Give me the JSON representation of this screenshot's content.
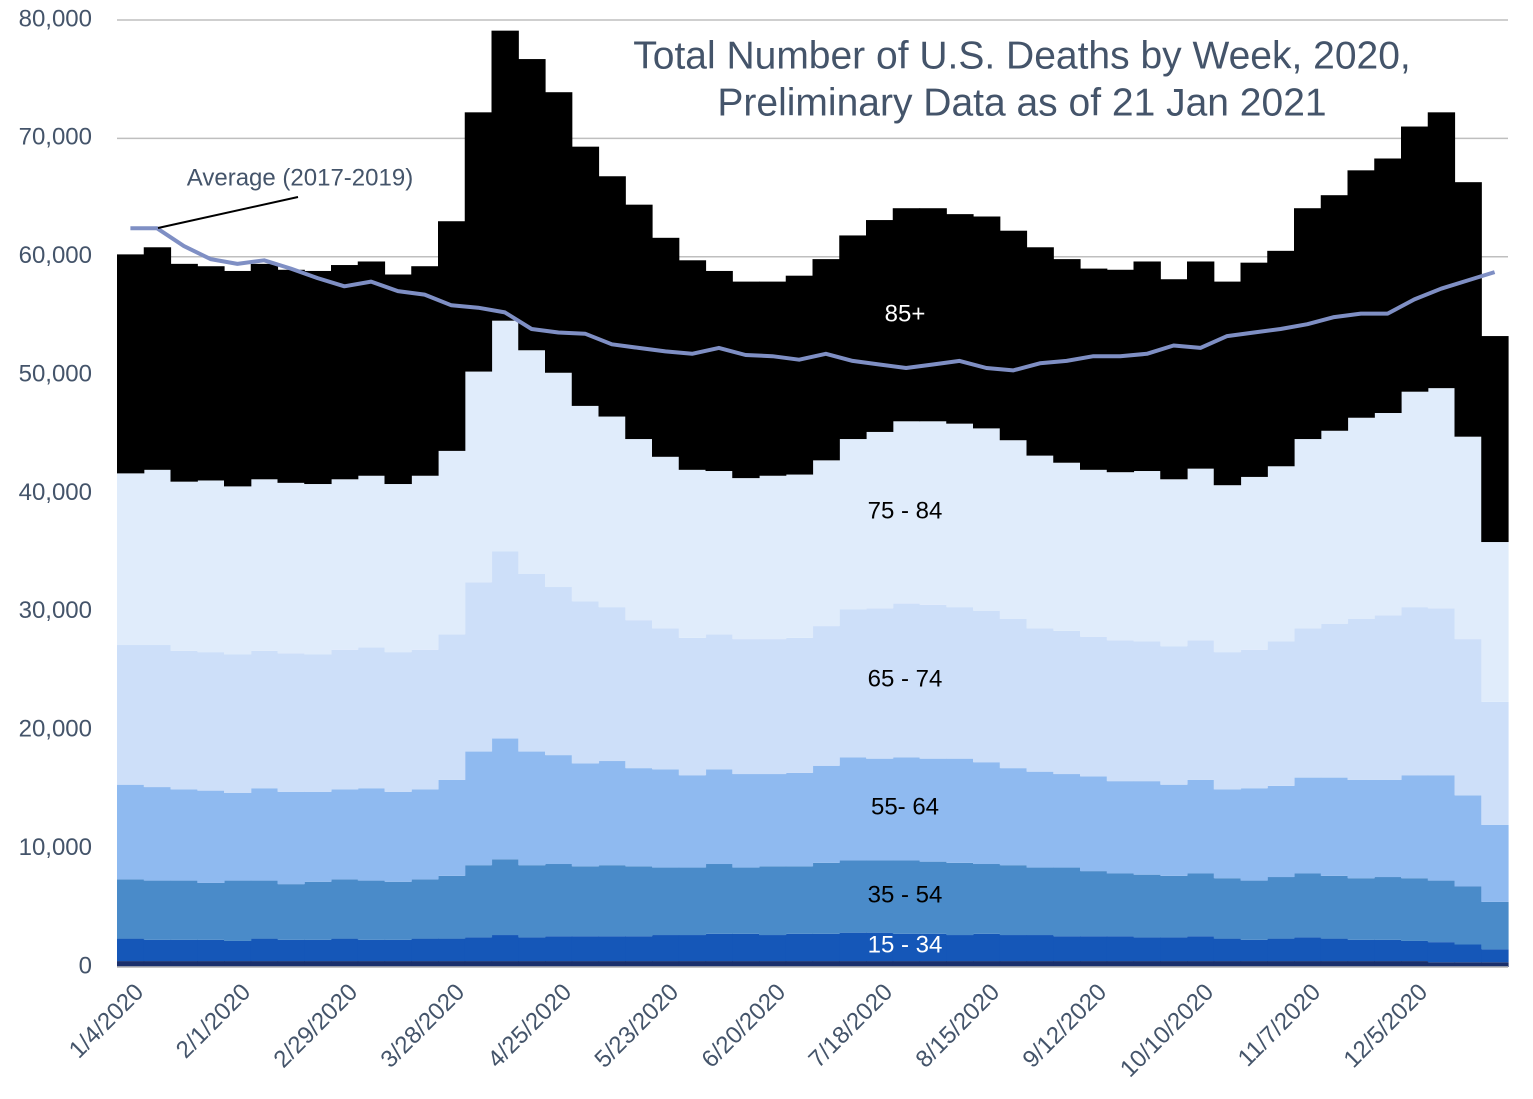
{
  "chart_data": {
    "type": "stacked-step-area",
    "title": [
      "Total Number of U.S. Deaths by Week, 2020,",
      "Preliminary Data as of 21 Jan 2021"
    ],
    "categories": [
      "1/4/2020",
      null,
      null,
      null,
      "2/1/2020",
      null,
      null,
      null,
      "2/29/2020",
      null,
      null,
      null,
      "3/28/2020",
      null,
      null,
      null,
      "4/25/2020",
      null,
      null,
      null,
      "5/23/2020",
      null,
      null,
      null,
      "6/20/2020",
      null,
      null,
      null,
      "7/18/2020",
      null,
      null,
      null,
      "8/15/2020",
      null,
      null,
      null,
      "9/12/2020",
      null,
      null,
      null,
      "10/10/2020",
      null,
      null,
      null,
      "11/7/2020",
      null,
      null,
      null,
      "12/5/2020",
      null,
      null,
      null
    ],
    "ylim": [
      0,
      80000
    ],
    "yticks": [
      0,
      {
        "value": 10000,
        "label": "10,000"
      },
      {
        "value": 20000,
        "label": "20,000"
      },
      {
        "value": 30000,
        "label": "30,000"
      },
      {
        "value": 40000,
        "label": "40,000"
      },
      {
        "value": 50000,
        "label": "50,000"
      },
      {
        "value": 60000,
        "label": "60,000"
      },
      {
        "value": 70000,
        "label": "70,000"
      },
      {
        "value": 80000,
        "label": "80,000"
      }
    ],
    "grid": true,
    "series": [
      {
        "color": "#1a2f6b",
        "values": [
          500,
          500,
          500,
          500,
          500,
          500,
          500,
          500,
          500,
          500,
          500,
          500,
          500,
          500,
          500,
          500,
          500,
          500,
          500,
          500,
          500,
          500,
          500,
          500,
          500,
          500,
          500,
          500,
          500,
          500,
          500,
          500,
          500,
          500,
          500,
          500,
          500,
          500,
          500,
          500,
          500,
          500,
          500,
          500,
          500,
          500,
          500,
          500,
          500,
          400,
          400,
          400
        ]
      },
      {
        "name": "15 - 34",
        "color": "#1557b8",
        "values": [
          1900,
          1800,
          1800,
          1800,
          1700,
          1900,
          1800,
          1800,
          1900,
          1800,
          1800,
          1900,
          1900,
          2000,
          2200,
          2000,
          2100,
          2100,
          2100,
          2100,
          2200,
          2200,
          2300,
          2300,
          2200,
          2300,
          2300,
          2400,
          2400,
          2300,
          2300,
          2200,
          2300,
          2200,
          2200,
          2100,
          2100,
          2100,
          2000,
          2000,
          2100,
          1900,
          1800,
          1900,
          2000,
          1900,
          1800,
          1800,
          1700,
          1700,
          1500,
          1100
        ]
      },
      {
        "name": "35 - 54",
        "color": "#4a8bc9",
        "values": [
          5000,
          5000,
          5000,
          4800,
          5100,
          4900,
          4700,
          4900,
          5000,
          5000,
          4900,
          5000,
          5300,
          6100,
          6400,
          6100,
          6100,
          5900,
          6000,
          5900,
          5700,
          5700,
          5900,
          5600,
          5800,
          5700,
          6000,
          6100,
          6100,
          6200,
          6100,
          6100,
          5900,
          5900,
          5700,
          5800,
          5500,
          5300,
          5300,
          5200,
          5300,
          5100,
          5000,
          5200,
          5400,
          5300,
          5200,
          5300,
          5300,
          5200,
          4900,
          4000
        ]
      },
      {
        "name": "55- 64",
        "color": "#8fbaf0",
        "values": [
          8000,
          7900,
          7700,
          7800,
          7400,
          7800,
          7800,
          7600,
          7600,
          7800,
          7600,
          7600,
          8100,
          9600,
          10200,
          9600,
          9200,
          8700,
          8800,
          8300,
          8300,
          7800,
          8000,
          7900,
          7800,
          7900,
          8200,
          8700,
          8600,
          8700,
          8700,
          8800,
          8600,
          8200,
          8100,
          7900,
          8000,
          7800,
          7900,
          7700,
          7900,
          7500,
          7800,
          7700,
          8100,
          8300,
          8300,
          8200,
          8700,
          8900,
          7700,
          6500
        ]
      },
      {
        "name": "65 - 74",
        "color": "#cddff9",
        "values": [
          11800,
          12000,
          11700,
          11700,
          11700,
          11600,
          11700,
          11600,
          11800,
          11900,
          11800,
          11800,
          12300,
          14300,
          15800,
          15000,
          14200,
          13700,
          13000,
          12500,
          11900,
          11600,
          11400,
          11400,
          11400,
          11400,
          11800,
          12500,
          12700,
          13000,
          13000,
          12800,
          12800,
          12600,
          12100,
          12100,
          11800,
          11900,
          11800,
          11700,
          11800,
          11600,
          11700,
          12200,
          12600,
          13000,
          13600,
          13900,
          14200,
          14100,
          13200,
          10400
        ]
      },
      {
        "name": "75 - 84",
        "color": "#e0ecfb",
        "values": [
          14500,
          14800,
          14300,
          14500,
          14200,
          14500,
          14400,
          14400,
          14400,
          14500,
          14200,
          14700,
          15500,
          17800,
          19500,
          18900,
          18100,
          16500,
          16100,
          15300,
          14500,
          14200,
          13800,
          13600,
          13800,
          13800,
          14000,
          14400,
          14900,
          15400,
          15500,
          15500,
          15400,
          15100,
          14600,
          14200,
          14100,
          14200,
          14400,
          14100,
          14500,
          14100,
          14600,
          14800,
          16000,
          16300,
          17000,
          17100,
          18200,
          18600,
          17100,
          13500
        ]
      },
      {
        "name": "85+",
        "color": "#000000",
        "values": [
          18500,
          18800,
          18400,
          18100,
          18200,
          18200,
          18000,
          18000,
          18100,
          18100,
          17700,
          17700,
          19400,
          21900,
          24500,
          24600,
          23700,
          21900,
          20300,
          19800,
          18500,
          17700,
          16900,
          16600,
          16400,
          16800,
          17000,
          17200,
          17900,
          18000,
          18000,
          17700,
          17900,
          17700,
          17600,
          17200,
          17000,
          17100,
          17700,
          16900,
          17500,
          17200,
          18100,
          18200,
          19500,
          19900,
          20900,
          21500,
          22400,
          23300,
          21500,
          17400
        ]
      }
    ],
    "line": {
      "name": "Average (2017-2019)",
      "color": "#7f8fc4",
      "values": [
        62400,
        62400,
        60900,
        59800,
        59400,
        59700,
        59000,
        58200,
        57500,
        57900,
        57100,
        56800,
        55900,
        55700,
        55300,
        53900,
        53600,
        53500,
        52600,
        52300,
        52000,
        51800,
        52300,
        51700,
        51600,
        51300,
        51800,
        51200,
        50900,
        50600,
        50900,
        51200,
        50600,
        50400,
        51000,
        51200,
        51600,
        51600,
        51800,
        52500,
        52300,
        53300,
        53600,
        53900,
        54300,
        54900,
        55200,
        55200,
        56400,
        57300,
        58000,
        58700
      ]
    }
  }
}
